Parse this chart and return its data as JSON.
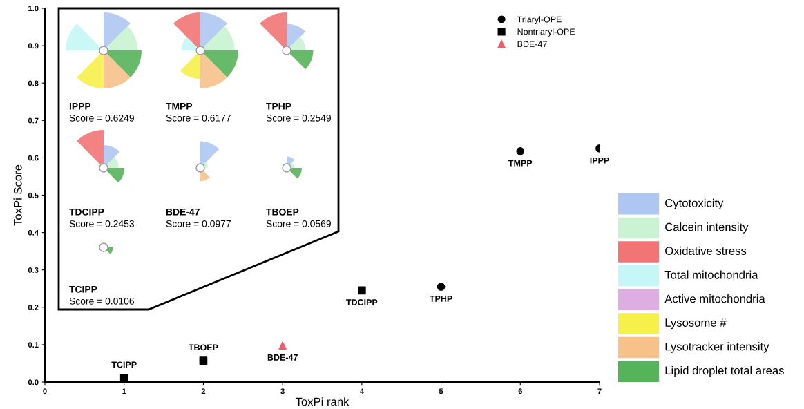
{
  "chart_data": [
    {
      "type": "scatter",
      "xlabel": "ToxPi rank",
      "ylabel": "ToxPi Score",
      "xlim": [
        0,
        7
      ],
      "ylim": [
        0,
        1
      ],
      "xticks": [
        0,
        1,
        2,
        3,
        4,
        5,
        6,
        7
      ],
      "yticks": [
        {
          "value": 0,
          "label": "0.0"
        },
        {
          "value": 0.1,
          "label": "0.1"
        },
        {
          "value": 0.2,
          "label": "0.2"
        },
        {
          "value": 0.3,
          "label": "0.3"
        },
        {
          "value": 0.4,
          "label": "0.4"
        },
        {
          "value": 0.5,
          "label": "0.5"
        },
        {
          "value": 0.6,
          "label": "0.6"
        },
        {
          "value": 0.7,
          "label": "0.7"
        },
        {
          "value": 0.8,
          "label": "0.8"
        },
        {
          "value": 0.9,
          "label": "0.9"
        },
        {
          "value": 1.0,
          "label": "1.0"
        }
      ],
      "legend": "top right",
      "grid": false,
      "series": [
        {
          "name": "Triaryl-OPE",
          "color": "#000000",
          "marker": "circle",
          "x": [
            5,
            6,
            7
          ],
          "values": [
            0.2549,
            0.6177,
            0.6249
          ]
        },
        {
          "name": "Nontriaryl-OPE",
          "color": "#000000",
          "marker": "square",
          "x": [
            1,
            2,
            4
          ],
          "values": [
            0.0106,
            0.0569,
            0.2453
          ]
        },
        {
          "name": "BDE-47",
          "color": "#e8606a",
          "marker": "triangle",
          "x": [
            3
          ],
          "values": [
            0.0977
          ]
        }
      ],
      "annotations": [
        {
          "text": "TCIPP",
          "x": 1,
          "y": 0.0106
        },
        {
          "text": "TBOEP",
          "x": 2,
          "y": 0.0569
        },
        {
          "text": "BDE-47",
          "x": 3,
          "y": 0.0977
        },
        {
          "text": "TDCIPP",
          "x": 4,
          "y": 0.2453
        },
        {
          "text": "TPHP",
          "x": 5,
          "y": 0.2549
        },
        {
          "text": "TMPP",
          "x": 6,
          "y": 0.6177
        },
        {
          "text": "IPPP",
          "x": 7,
          "y": 0.6249
        },
        "IPPP",
        "Score = 0.6249",
        "TMPP",
        "Score = 0.6177",
        "TPHP",
        "Score = 0.2549",
        "TDCIPP",
        "Score = 0.2453",
        "BDE-47",
        "Score = 0.0977",
        "TBOEP",
        "Score = 0.0569",
        "TCIPP",
        "Score = 0.0106"
      ]
    },
    {
      "type": "other",
      "categories": [
        "Cytotoxicity",
        "Calcein intensity",
        "Oxidative stress",
        "Total mitochondria",
        "Active mitochondria",
        "Lysosome #",
        "Lysotracker intensity",
        "Lipid droplet total areas"
      ],
      "colors": [
        "#aec6f2",
        "#c9f3d2",
        "#f27474",
        "#c6f6f6",
        "#deaee2",
        "#f6f04a",
        "#f6c28a",
        "#55b35a"
      ]
    }
  ]
}
